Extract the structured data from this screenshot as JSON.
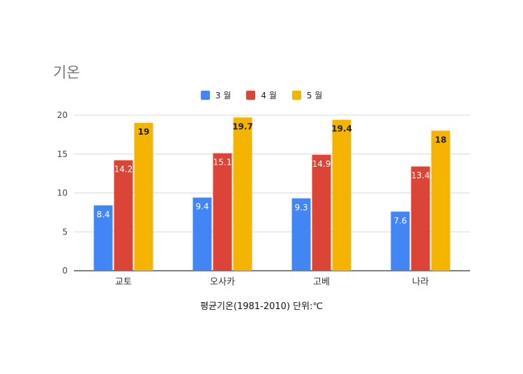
{
  "chart_data": {
    "type": "bar",
    "title": "기온",
    "categories": [
      "교토",
      "오사카",
      "고베",
      "나라"
    ],
    "series": [
      {
        "name": "3 월",
        "color": "#4285f4",
        "values": [
          8.4,
          9.4,
          9.3,
          7.6
        ],
        "labels": [
          "8.4",
          "9.4",
          "9.3",
          "7.6"
        ]
      },
      {
        "name": "4 월",
        "color": "#db4437",
        "values": [
          14.2,
          15.1,
          14.9,
          13.4
        ],
        "labels": [
          "14.2",
          "15.1",
          "14.9",
          "13.4"
        ]
      },
      {
        "name": "5 월",
        "color": "#f4b400",
        "values": [
          19,
          19.7,
          19.4,
          18
        ],
        "labels": [
          "19",
          "19.7",
          "19.4",
          "18"
        ]
      }
    ],
    "y_ticks": [
      "0",
      "5",
      "10",
      "15",
      "20"
    ],
    "ylim": [
      0,
      20
    ],
    "grid": true,
    "legend_position": "top",
    "xlabel": "평균기온(1981-2010) 단위:℃"
  }
}
